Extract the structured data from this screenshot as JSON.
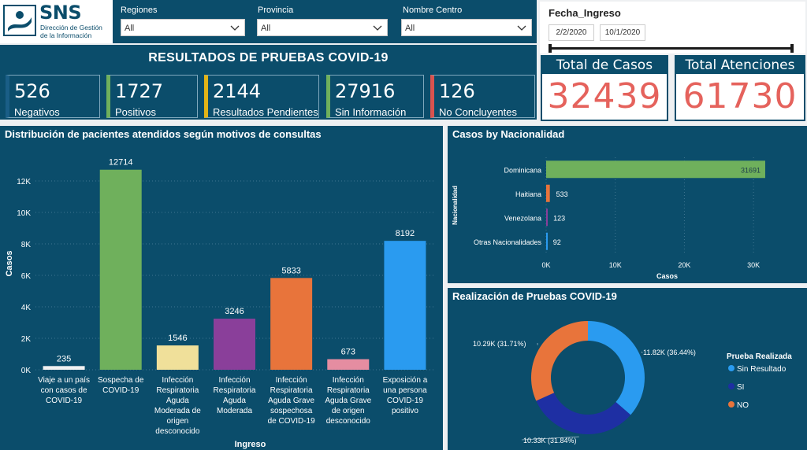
{
  "logo": {
    "brand": "SNS",
    "line1": "Dirección de Gestión",
    "line2": "de la Información"
  },
  "filters": [
    {
      "label": "Regiones",
      "value": "All"
    },
    {
      "label": "Provincia",
      "value": "All"
    },
    {
      "label": "Nombre Centro",
      "value": "All"
    }
  ],
  "date_slicer": {
    "title": "Fecha_Ingreso",
    "start": "2/2/2020",
    "end": "10/1/2020"
  },
  "main_title": "RESULTADOS DE PRUEBAS COVID-19",
  "kpis": [
    {
      "value": "526",
      "label": "Negativos",
      "accent": "#1a5e86"
    },
    {
      "value": "1727",
      "label": "Positivos",
      "accent": "#6fb05c"
    },
    {
      "value": "2144",
      "label": "Resultados Pendientes",
      "accent": "#e3b417"
    },
    {
      "value": "27916",
      "label": "Sin Información",
      "accent": "#6fb05c"
    },
    {
      "value": "126",
      "label": "No Concluyentes",
      "accent": "#d9534f"
    }
  ],
  "totals": {
    "casos": {
      "label": "Total de Casos",
      "value": "32439"
    },
    "atenciones": {
      "label": "Total Atenciones",
      "value": "61730"
    }
  },
  "colors": {
    "navy": "#0b4d6b",
    "total_value": "#e5625c"
  },
  "chart_data": [
    {
      "type": "bar",
      "title": "Distribución de pacientes atendidos según motivos de consultas",
      "xlabel": "Ingreso",
      "ylabel": "Casos",
      "ylim": [
        0,
        13500
      ],
      "yticks": [
        0,
        2000,
        4000,
        6000,
        8000,
        10000,
        12000
      ],
      "ytick_labels": [
        "0K",
        "2K",
        "4K",
        "6K",
        "8K",
        "10K",
        "12K"
      ],
      "categories": [
        [
          "Viaje a un país",
          "con casos de",
          "COVID-19"
        ],
        [
          "Sospecha de",
          "COVID-19"
        ],
        [
          "Infección",
          "Respiratoria",
          "Aguda",
          "Moderada de",
          "origen",
          "desconocido"
        ],
        [
          "Infección",
          "Respiratoria",
          "Aguda",
          "Moderada"
        ],
        [
          "Infección",
          "Respiratoria",
          "Aguda Grave",
          "sospechosa",
          "de COVID-19"
        ],
        [
          "Infección",
          "Respiratoria",
          "Aguda Grave",
          "de origen",
          "desconocido"
        ],
        [
          "Exposición a",
          "una persona",
          "COVID-19",
          "positivo"
        ]
      ],
      "values": [
        235,
        12714,
        1546,
        3246,
        5833,
        673,
        8192
      ],
      "colors": [
        "#f2f2f2",
        "#6fb05c",
        "#f0e09a",
        "#8a3f9a",
        "#e8743b",
        "#e58da1",
        "#2a9bf0"
      ],
      "grid": true
    },
    {
      "type": "bar",
      "orientation": "horizontal",
      "title": "Casos by Nacionalidad",
      "xlabel": "Casos",
      "ylabel": "Nacionalidad",
      "xlim": [
        0,
        35000
      ],
      "xticks": [
        0,
        10000,
        20000,
        30000
      ],
      "xtick_labels": [
        "0K",
        "10K",
        "20K",
        "30K"
      ],
      "categories": [
        "Dominicana",
        "Haitiana",
        "Venezolana",
        "Otras Nacionalidades"
      ],
      "values": [
        31691,
        533,
        123,
        92
      ],
      "colors": [
        "#6fb05c",
        "#e8743b",
        "#8a3f9a",
        "#2a9bf0"
      ],
      "grid": true
    },
    {
      "type": "pie",
      "donut": true,
      "title": "Realización de Pruebas COVID-19",
      "legend_title": "Prueba Realizada",
      "legend_position": "right",
      "categories": [
        "Sin Resultado",
        "SI",
        "NO"
      ],
      "values": [
        11820,
        10330,
        10290
      ],
      "labels": [
        "11.82K (36.44%)",
        "10.33K (31.84%)",
        "10.29K (31.71%)"
      ],
      "colors": [
        "#2a9bf0",
        "#1e2fa3",
        "#e8743b"
      ]
    }
  ]
}
